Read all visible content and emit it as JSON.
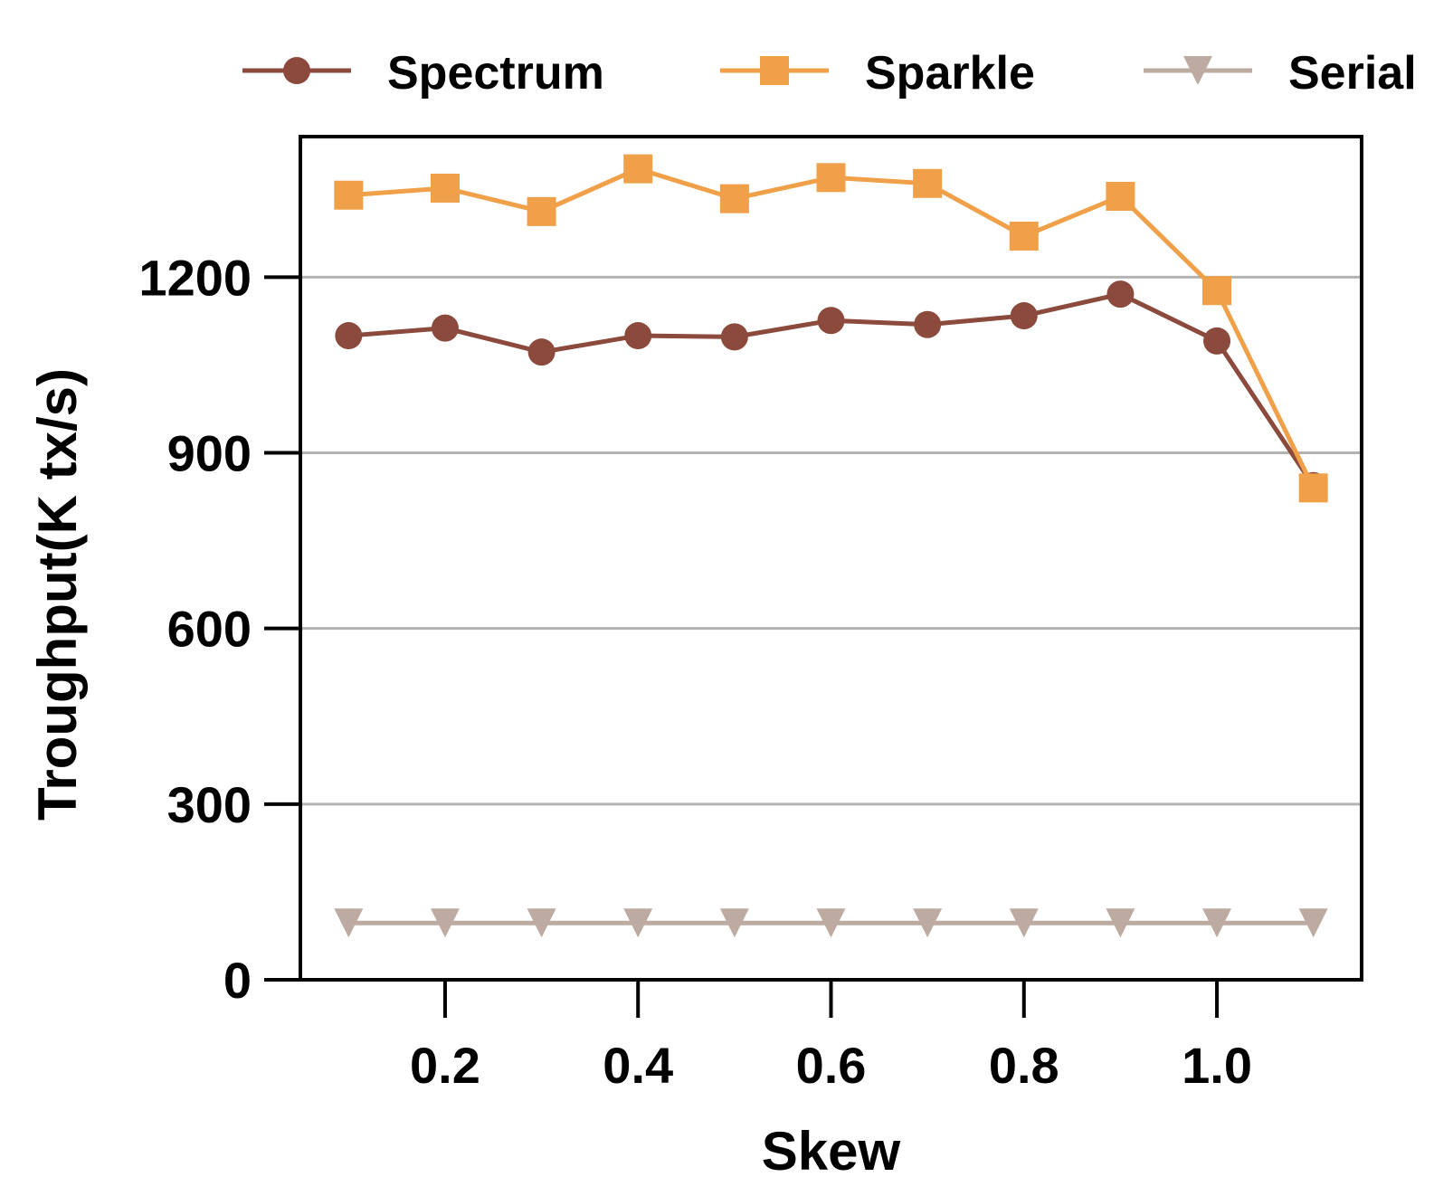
{
  "chart_data": {
    "type": "line",
    "title": "",
    "xlabel": "Skew",
    "ylabel": "Troughput(K tx/s)",
    "xlim": [
      0.05,
      1.15
    ],
    "ylim": [
      0,
      1440
    ],
    "x_ticks": [
      0.2,
      0.4,
      0.6,
      0.8,
      1.0
    ],
    "x_tick_labels": [
      "0.2",
      "0.4",
      "0.6",
      "0.8",
      "1.0"
    ],
    "y_ticks": [
      0,
      300,
      600,
      900,
      1200
    ],
    "y_tick_labels": [
      "0",
      "300",
      "600",
      "900",
      "1200"
    ],
    "grid": "horizontal",
    "legend_position": "top",
    "x": [
      0.1,
      0.2,
      0.3,
      0.4,
      0.5,
      0.6,
      0.7,
      0.8,
      0.9,
      1.0,
      1.1
    ],
    "series": [
      {
        "name": "Spectrum",
        "marker": "circle",
        "color": "#8B4A3C",
        "values": [
          1100,
          1113,
          1072,
          1100,
          1098,
          1126,
          1119,
          1134,
          1171,
          1091,
          844
        ]
      },
      {
        "name": "Sparkle",
        "marker": "square",
        "color": "#F0A048",
        "values": [
          1340,
          1352,
          1312,
          1385,
          1334,
          1370,
          1360,
          1270,
          1338,
          1177,
          840
        ]
      },
      {
        "name": "Serial",
        "marker": "triangle-down",
        "color": "#BDAAA0",
        "values": [
          97,
          97,
          97,
          97,
          97,
          97,
          97,
          97,
          97,
          97,
          97
        ]
      }
    ]
  },
  "colors": {
    "grid": "#B3B3B3",
    "axis": "#000000"
  }
}
